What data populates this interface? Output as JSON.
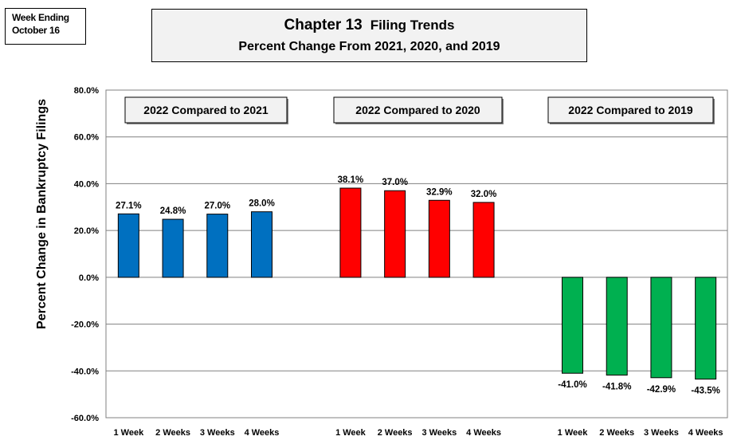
{
  "header": {
    "week_line1": "Week Ending",
    "week_line2": "October 16",
    "title_main": "Chapter 13",
    "title_sub": "Filing Trends",
    "subtitle": "Percent Change From 2021, 2020, and 2019"
  },
  "chart_data": {
    "type": "bar",
    "ylabel": "Percent Change in Bankruptcy Filings",
    "ylim": [
      -60,
      80
    ],
    "yticks": [
      80,
      60,
      40,
      20,
      0,
      -20,
      -40,
      -60
    ],
    "ytick_labels": [
      "80.0%",
      "60.0%",
      "40.0%",
      "20.0%",
      "0.0%",
      "-20.0%",
      "-40.0%",
      "-60.0%"
    ],
    "grid": true,
    "groups": [
      {
        "name": "2022 Compared to 2021",
        "color": "#0070c0",
        "categories": [
          "1 Week",
          "2 Weeks",
          "3 Weeks",
          "4 Weeks"
        ],
        "values": [
          27.1,
          24.8,
          27.0,
          28.0
        ],
        "labels": [
          "27.1%",
          "24.8%",
          "27.0%",
          "28.0%"
        ]
      },
      {
        "name": "2022 Compared to 2020",
        "color": "#ff0000",
        "categories": [
          "1 Week",
          "2 Weeks",
          "3 Weeks",
          "4 Weeks"
        ],
        "values": [
          38.1,
          37.0,
          32.9,
          32.0
        ],
        "labels": [
          "38.1%",
          "37.0%",
          "32.9%",
          "32.0%"
        ]
      },
      {
        "name": "2022 Compared to 2019",
        "color": "#00b050",
        "categories": [
          "1 Week",
          "2 Weeks",
          "3 Weeks",
          "4 Weeks"
        ],
        "values": [
          -41.0,
          -41.8,
          -42.9,
          -43.5
        ],
        "labels": [
          "-41.0%",
          "-41.8%",
          "-42.9%",
          "-43.5%"
        ]
      }
    ]
  }
}
